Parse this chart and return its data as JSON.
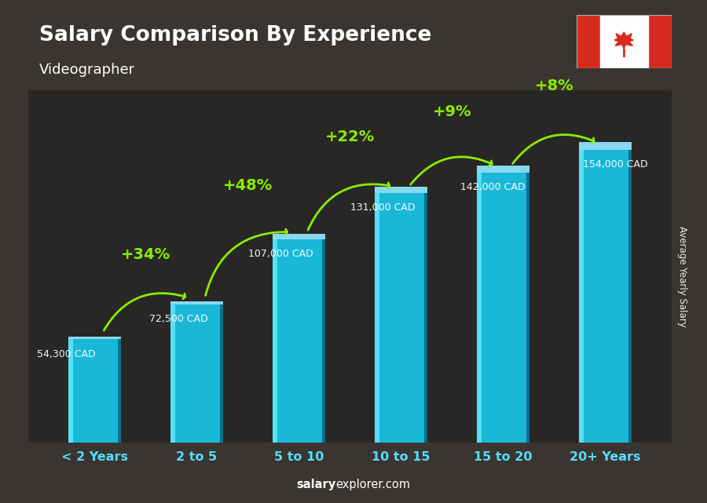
{
  "title": "Salary Comparison By Experience",
  "subtitle": "Videographer",
  "categories": [
    "< 2 Years",
    "2 to 5",
    "5 to 10",
    "10 to 15",
    "15 to 20",
    "20+ Years"
  ],
  "values": [
    54300,
    72500,
    107000,
    131000,
    142000,
    154000
  ],
  "value_labels": [
    "54,300 CAD",
    "72,500 CAD",
    "107,000 CAD",
    "131,000 CAD",
    "142,000 CAD",
    "154,000 CAD"
  ],
  "pct_labels": [
    "+34%",
    "+48%",
    "+22%",
    "+9%",
    "+8%"
  ],
  "bar_color": "#1ab8d8",
  "bar_highlight": "#55e0f5",
  "bar_shadow": "#0a7090",
  "bg_color": "#2d2d2d",
  "title_color": "#ffffff",
  "subtitle_color": "#ffffff",
  "value_label_color": "#ffffff",
  "pct_color": "#88ee00",
  "arrow_color": "#88ee00",
  "ylabel": "Average Yearly Salary",
  "footer_bold": "salary",
  "footer_normal": "explorer.com",
  "ylim": [
    0,
    185000
  ],
  "bar_width": 0.52
}
